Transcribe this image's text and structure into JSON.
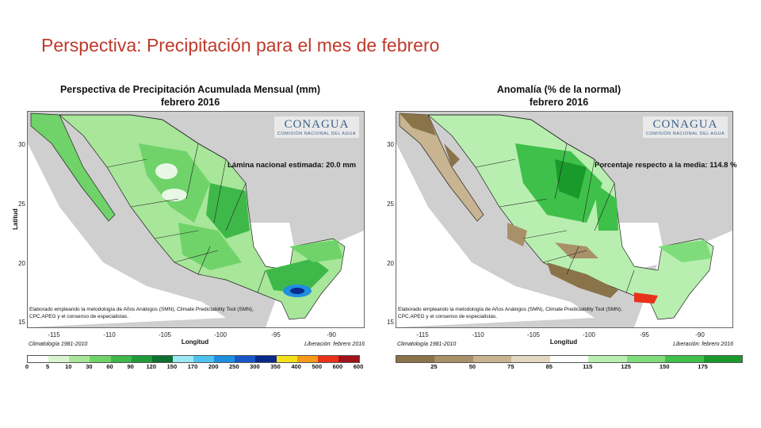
{
  "slide": {
    "title": "Perspectiva: Precipitación para el mes de febrero"
  },
  "left_map": {
    "title_line1": "Perspectiva de Precipitación Acumulada Mensual (mm)",
    "title_line2": "febrero 2016",
    "logo": "CONAGUA",
    "logo_sub": "COMISIÓN NACIONAL DEL AGUA",
    "stat_text": "Lámina nacional estimada: 20.0 mm",
    "ylabel": "Latitud",
    "xlabel": "Longitud",
    "yticks": [
      "30",
      "25",
      "20",
      "15"
    ],
    "xticks": [
      "-115",
      "-110",
      "-105",
      "-100",
      "-95",
      "-90"
    ],
    "credit_line1": "Elaborado empleando la metodología de Años Análogos (SMN), Climate Predictability Tool (SMN),",
    "credit_line2": "CPC,APEG y el consenso de especialistas.",
    "climatology": "Climatología 1981-2010",
    "liberation": "Liberación: febrero 2016",
    "legend_labels": [
      "0",
      "5",
      "10",
      "30",
      "60",
      "90",
      "120",
      "150",
      "170",
      "200",
      "250",
      "300",
      "350",
      "400",
      "500",
      "600",
      "600"
    ],
    "legend_colors": [
      "#ffffff",
      "#d8f5d0",
      "#a8e69a",
      "#6fd36a",
      "#3fb84a",
      "#1f9b3a",
      "#0d6f30",
      "#9de8f5",
      "#4fc3f0",
      "#1f8fe0",
      "#1a56c8",
      "#0a2a8a",
      "#f5e01a",
      "#f59a1a",
      "#e8321a",
      "#a0141a",
      "#f01ab4"
    ]
  },
  "right_map": {
    "title_line1": "Anomalía (% de la normal)",
    "title_line2": "febrero 2016",
    "logo": "CONAGUA",
    "logo_sub": "COMISIÓN NACIONAL DEL AGUA",
    "stat_text": "Porcentaje respecto a la media: 114.8 %",
    "yticks": [
      "30",
      "25",
      "20",
      "15"
    ],
    "xticks": [
      "-115",
      "-110",
      "-105",
      "-100",
      "-95",
      "-90"
    ],
    "xlabel": "Longitud",
    "credit_line1": "Elaborado empleando la metodología de Años Análogos (SMN), Climate Predictability Tool (SMN),",
    "credit_line2": "CPC,APEG y el consenso de especialistas.",
    "climatology": "Climatología 1981-2010",
    "liberation": "Liberación: febrero 2016",
    "legend_labels": [
      "25",
      "50",
      "75",
      "85",
      "115",
      "125",
      "150",
      "175"
    ],
    "legend_colors": [
      "#8a7348",
      "#a89068",
      "#c8b490",
      "#e2d8c0",
      "#ffffff",
      "#b8efb0",
      "#7fdc7a",
      "#3fc04a",
      "#1a9a2a"
    ]
  },
  "colors": {
    "title_red": "#c0392b",
    "no_data_gray": "#cfcfcf",
    "ocean": "#ffffff",
    "green_light": "#a8e69a",
    "green_mid": "#6fd36a",
    "green_dark": "#3fb84a",
    "blue_peak": "#1f8fe0",
    "brown_dry": "#9a8255"
  }
}
